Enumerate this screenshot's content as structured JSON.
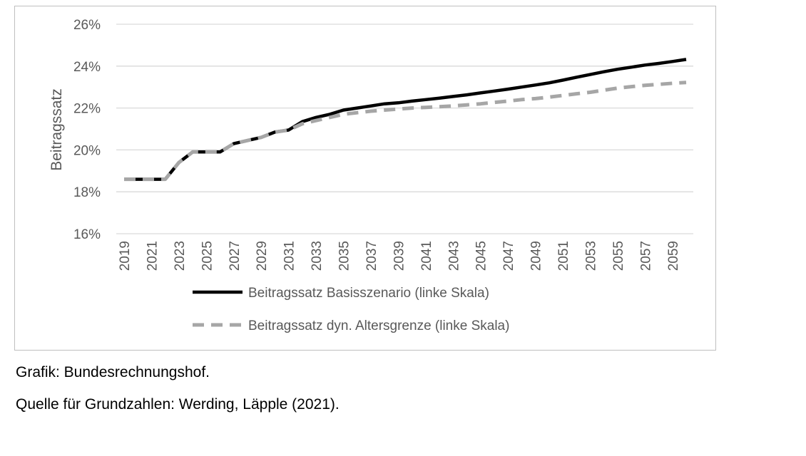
{
  "chart_data": {
    "type": "line",
    "title": "",
    "xlabel": "",
    "ylabel": "Beitragssatz",
    "ylim": [
      16,
      26
    ],
    "yticks": [
      16,
      18,
      20,
      22,
      24,
      26
    ],
    "ytick_suffix": "%",
    "x": [
      2019,
      2020,
      2021,
      2022,
      2023,
      2024,
      2025,
      2026,
      2027,
      2028,
      2029,
      2030,
      2031,
      2032,
      2033,
      2034,
      2035,
      2036,
      2037,
      2038,
      2039,
      2040,
      2041,
      2042,
      2043,
      2044,
      2045,
      2046,
      2047,
      2048,
      2049,
      2050,
      2051,
      2052,
      2053,
      2054,
      2055,
      2056,
      2057,
      2058,
      2059,
      2060
    ],
    "xticks": [
      2019,
      2021,
      2023,
      2025,
      2027,
      2029,
      2031,
      2033,
      2035,
      2037,
      2039,
      2041,
      2043,
      2045,
      2047,
      2049,
      2051,
      2053,
      2055,
      2057,
      2059
    ],
    "grid": true,
    "legend_position": "bottom",
    "series": [
      {
        "name": "Beitragssatz Basisszenario (linke Skala)",
        "color": "#000000",
        "style": "solid",
        "values": [
          18.6,
          18.6,
          18.6,
          18.6,
          19.4,
          19.9,
          19.9,
          19.9,
          20.3,
          20.45,
          20.6,
          20.85,
          20.95,
          21.35,
          21.55,
          21.7,
          21.9,
          22.0,
          22.1,
          22.2,
          22.25,
          22.33,
          22.4,
          22.47,
          22.55,
          22.63,
          22.72,
          22.81,
          22.9,
          23.0,
          23.1,
          23.2,
          23.33,
          23.47,
          23.6,
          23.73,
          23.85,
          23.95,
          24.05,
          24.13,
          24.22,
          24.32
        ]
      },
      {
        "name": "Beitragssatz dyn. Altersgrenze (linke Skala)",
        "color": "#a6a6a6",
        "style": "dashed",
        "values": [
          18.6,
          18.6,
          18.6,
          18.6,
          19.4,
          19.9,
          19.9,
          19.9,
          20.3,
          20.45,
          20.6,
          20.85,
          20.95,
          21.25,
          21.4,
          21.55,
          21.7,
          21.78,
          21.85,
          21.9,
          21.95,
          22.0,
          22.03,
          22.06,
          22.1,
          22.15,
          22.2,
          22.27,
          22.33,
          22.4,
          22.45,
          22.52,
          22.6,
          22.68,
          22.75,
          22.85,
          22.95,
          23.02,
          23.08,
          23.13,
          23.18,
          23.22
        ]
      }
    ]
  },
  "captions": {
    "source_graphic": "Grafik: Bundesrechnungshof.",
    "source_data": "Quelle für Grundzahlen: Werding, Läpple (2021)."
  }
}
